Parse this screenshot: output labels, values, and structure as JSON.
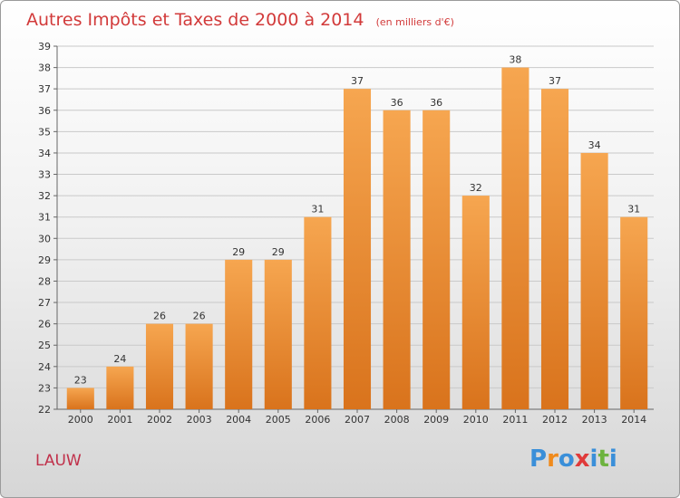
{
  "page": {
    "commune": "LAUW",
    "logo_text": "Proxiti"
  },
  "chart_data": {
    "type": "bar",
    "title": "Autres Impôts et Taxes de 2000 à 2014",
    "subtitle": "(en milliers d'€)",
    "categories": [
      "2000",
      "2001",
      "2002",
      "2003",
      "2004",
      "2005",
      "2006",
      "2007",
      "2008",
      "2009",
      "2010",
      "2011",
      "2012",
      "2013",
      "2014"
    ],
    "values": [
      23,
      24,
      26,
      26,
      29,
      29,
      31,
      37,
      36,
      36,
      32,
      38,
      37,
      34,
      31
    ],
    "ylim": [
      22,
      39
    ],
    "yticks": [
      22,
      23,
      24,
      25,
      26,
      27,
      28,
      29,
      30,
      31,
      32,
      33,
      34,
      35,
      36,
      37,
      38,
      39
    ],
    "grid": true,
    "bar_color_top": "#f6a650",
    "bar_color_bottom": "#d9731c",
    "logo_colors": [
      "#3a8fd9",
      "#f08a1c",
      "#3a8fd9",
      "#e03a3a",
      "#3a8fd9",
      "#6db33f",
      "#3a8fd9"
    ]
  }
}
